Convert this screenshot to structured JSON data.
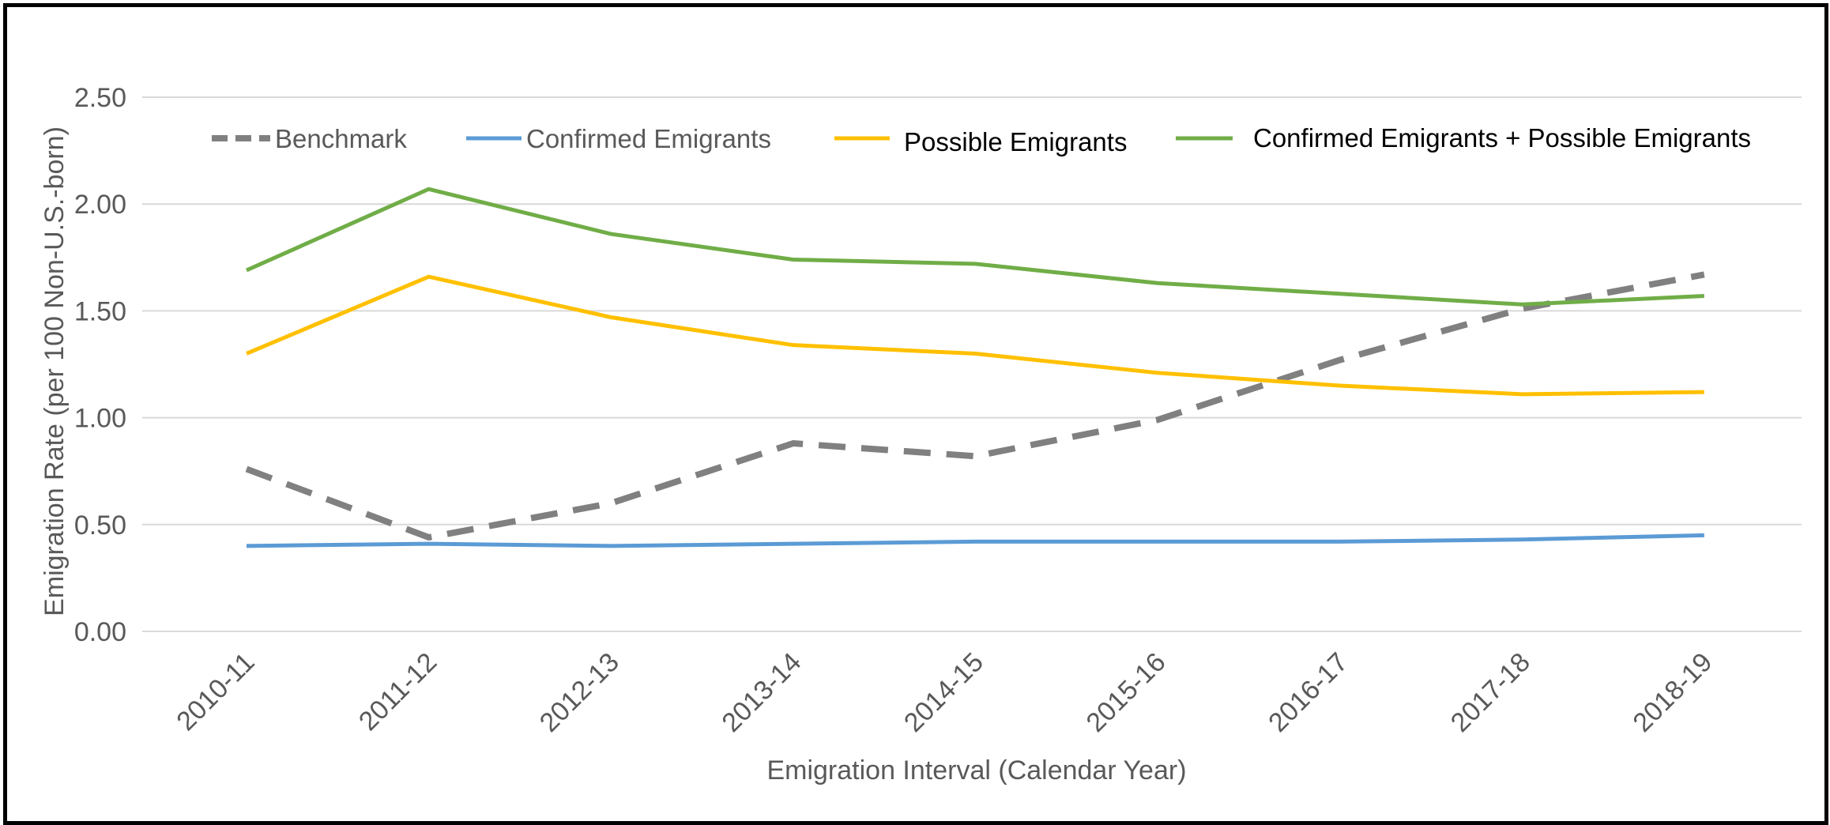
{
  "chart_data": {
    "type": "line",
    "xlabel": "Emigration Interval (Calendar Year)",
    "ylabel": "Emigration Rate (per 100 Non-U.S.-born)",
    "ylim": [
      0,
      2.5
    ],
    "yticks": [
      "0.00",
      "0.50",
      "1.00",
      "1.50",
      "2.00",
      "2.50"
    ],
    "grid": "horizontal",
    "legend_position": "top",
    "categories": [
      "2010-11",
      "2011-12",
      "2012-13",
      "2013-14",
      "2014-15",
      "2015-16",
      "2016-17",
      "2017-18",
      "2018-19"
    ],
    "series": [
      {
        "name": "Benchmark",
        "color": "#808080",
        "dash": true,
        "text_color": "#595959",
        "values": [
          0.76,
          0.44,
          0.6,
          0.88,
          0.82,
          0.99,
          1.27,
          1.51,
          1.67
        ]
      },
      {
        "name": "Confirmed Emigrants",
        "color": "#5B9BD5",
        "dash": false,
        "text_color": "#595959",
        "values": [
          0.4,
          0.41,
          0.4,
          0.41,
          0.42,
          0.42,
          0.42,
          0.43,
          0.45
        ]
      },
      {
        "name": "Possible Emigrants",
        "color": "#FFC000",
        "dash": false,
        "text_color": "#000000",
        "values": [
          1.3,
          1.66,
          1.47,
          1.34,
          1.3,
          1.21,
          1.15,
          1.11,
          1.12
        ]
      },
      {
        "name": "Confirmed Emigrants + Possible Emigrants",
        "color": "#70AD47",
        "dash": false,
        "text_color": "#000000",
        "values": [
          1.69,
          2.07,
          1.86,
          1.74,
          1.72,
          1.63,
          1.58,
          1.53,
          1.57
        ]
      }
    ]
  }
}
